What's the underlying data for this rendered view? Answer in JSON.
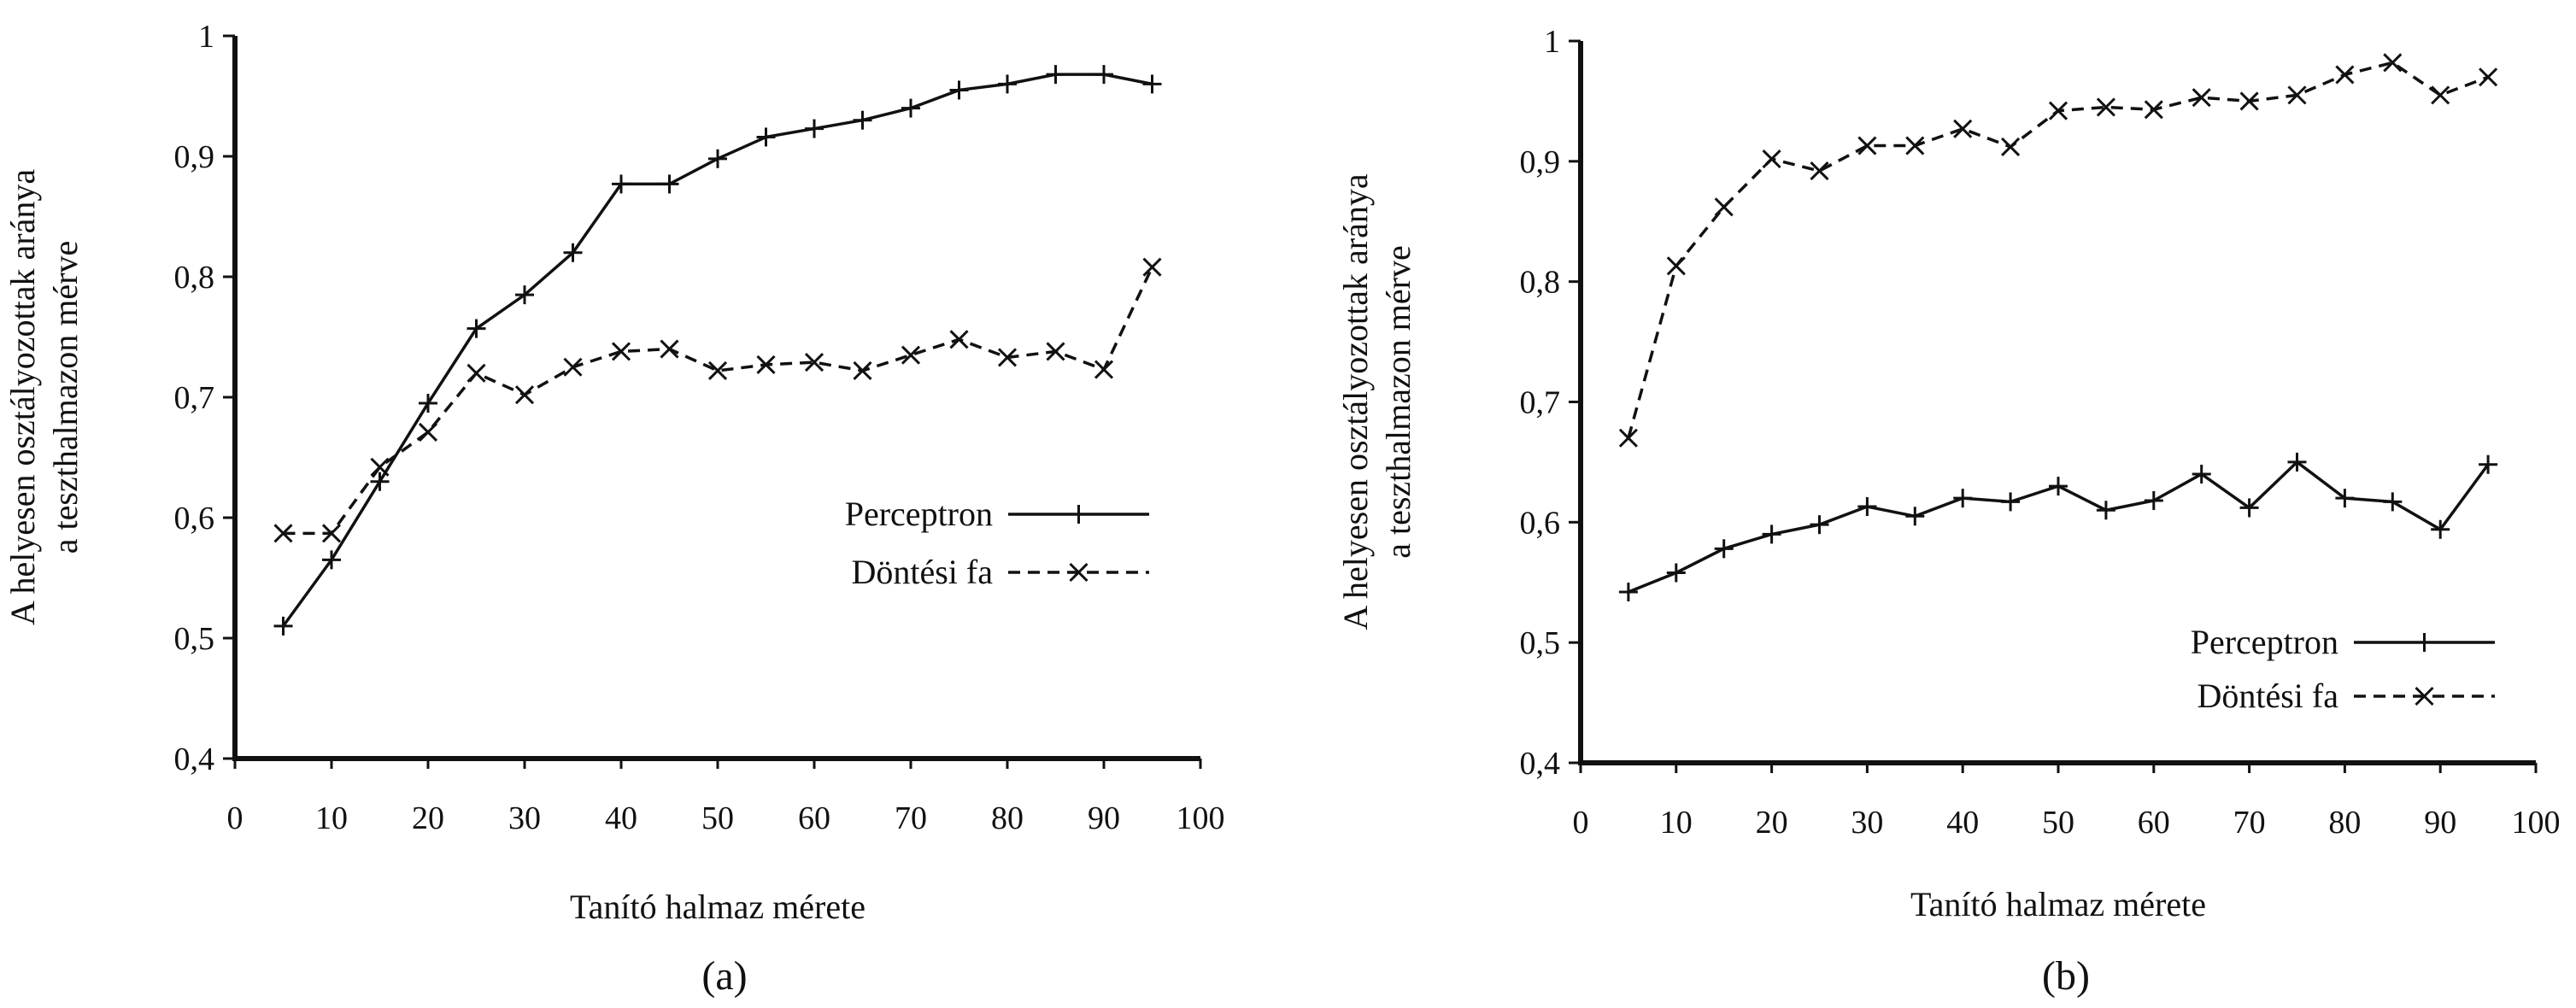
{
  "chart_data": [
    {
      "type": "line",
      "caption": "(a)",
      "xlabel": "Tanító halmaz mérete",
      "ylabel_lines": [
        "A helyesen osztályozottak aránya",
        "a teszthalmazon mérve"
      ],
      "xlim": [
        0,
        100
      ],
      "ylim": [
        0.4,
        1.0
      ],
      "x_ticks": [
        "0",
        "10",
        "20",
        "30",
        "40",
        "50",
        "60",
        "70",
        "80",
        "90",
        "100"
      ],
      "y_ticks": [
        "0,4",
        "0,5",
        "0,6",
        "0,7",
        "0,8",
        "0,9",
        "1"
      ],
      "legend": "center-right",
      "series": [
        {
          "name": "Perceptron",
          "style": "solid",
          "marker": "plus",
          "x": [
            5,
            10,
            15,
            20,
            25,
            30,
            35,
            40,
            45,
            50,
            55,
            60,
            65,
            70,
            75,
            80,
            85,
            90,
            95
          ],
          "y": [
            0.51,
            0.565,
            0.63,
            0.695,
            0.757,
            0.785,
            0.82,
            0.877,
            0.877,
            0.898,
            0.916,
            0.923,
            0.93,
            0.94,
            0.955,
            0.96,
            0.968,
            0.968,
            0.96
          ]
        },
        {
          "name": "Döntési fa",
          "style": "dashed",
          "marker": "x",
          "x": [
            5,
            10,
            15,
            20,
            25,
            30,
            35,
            40,
            45,
            50,
            55,
            60,
            65,
            70,
            75,
            80,
            85,
            90,
            95
          ],
          "y": [
            0.587,
            0.587,
            0.642,
            0.671,
            0.72,
            0.702,
            0.725,
            0.738,
            0.74,
            0.722,
            0.727,
            0.729,
            0.722,
            0.735,
            0.748,
            0.733,
            0.738,
            0.723,
            0.808
          ]
        }
      ]
    },
    {
      "type": "line",
      "caption": "(b)",
      "xlabel": "Tanító halmaz mérete",
      "ylabel_lines": [
        "A helyesen osztályozottak aránya",
        "a teszthalmazon mérve"
      ],
      "xlim": [
        0,
        100
      ],
      "ylim": [
        0.4,
        1.0
      ],
      "x_ticks": [
        "0",
        "10",
        "20",
        "30",
        "40",
        "50",
        "60",
        "70",
        "80",
        "90",
        "100"
      ],
      "y_ticks": [
        "0,4",
        "0,5",
        "0,6",
        "0,7",
        "0,8",
        "0,9",
        "1"
      ],
      "legend": "bottom-right",
      "series": [
        {
          "name": "Perceptron",
          "style": "solid",
          "marker": "plus",
          "x": [
            5,
            10,
            15,
            20,
            25,
            30,
            35,
            40,
            45,
            50,
            55,
            60,
            65,
            70,
            75,
            80,
            85,
            90,
            95
          ],
          "y": [
            0.542,
            0.558,
            0.578,
            0.59,
            0.598,
            0.613,
            0.605,
            0.62,
            0.617,
            0.63,
            0.61,
            0.618,
            0.64,
            0.612,
            0.65,
            0.62,
            0.617,
            0.594,
            0.648
          ]
        },
        {
          "name": "Döntési fa",
          "style": "dashed",
          "marker": "x",
          "x": [
            5,
            10,
            15,
            20,
            25,
            30,
            35,
            40,
            45,
            50,
            55,
            60,
            65,
            70,
            75,
            80,
            85,
            90,
            95
          ],
          "y": [
            0.67,
            0.813,
            0.862,
            0.902,
            0.892,
            0.913,
            0.913,
            0.927,
            0.912,
            0.942,
            0.945,
            0.943,
            0.953,
            0.95,
            0.955,
            0.972,
            0.982,
            0.955,
            0.97
          ]
        }
      ]
    }
  ]
}
